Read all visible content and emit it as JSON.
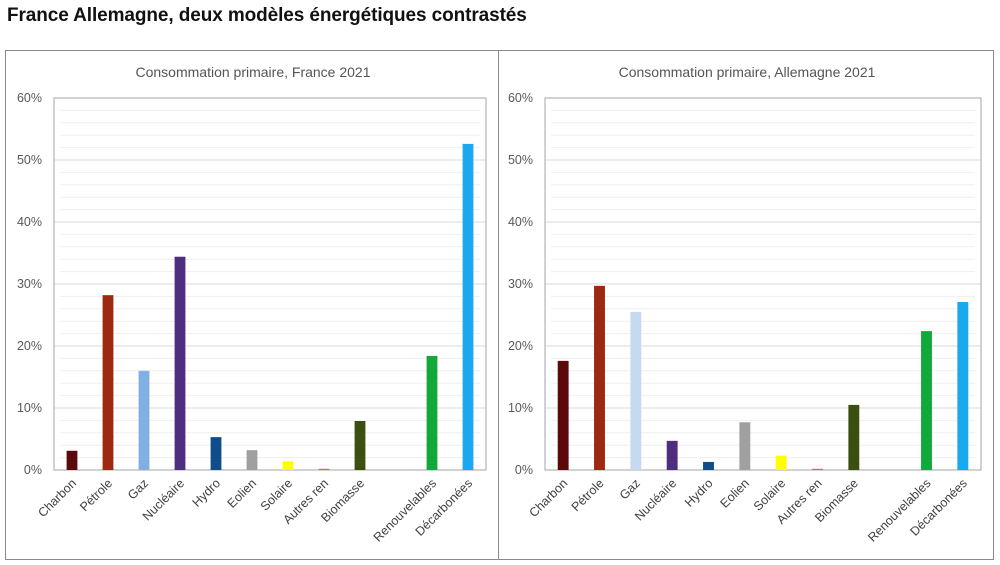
{
  "page": {
    "title": "France Allemagne, deux modèles énergétiques contrastés"
  },
  "chart_data": [
    {
      "type": "bar",
      "title": "Consommation primaire, France 2021",
      "xlabel": "",
      "ylabel": "",
      "ylim": [
        0,
        0.6
      ],
      "ytick_labels": [
        "0%",
        "10%",
        "20%",
        "30%",
        "40%",
        "50%",
        "60%"
      ],
      "yticks": [
        0,
        0.1,
        0.2,
        0.3,
        0.4,
        0.5,
        0.6
      ],
      "minor_grid_step": 0.02,
      "grid": true,
      "legend": "none",
      "categories": [
        "Charbon",
        "Pétrole",
        "Gaz",
        "Nucléaire",
        "Hydro",
        "Eolien",
        "Solaire",
        "Autres ren",
        "Biomasse",
        "",
        "Renouvelables",
        "Décarbonées"
      ],
      "values": [
        0.031,
        0.282,
        0.16,
        0.344,
        0.053,
        0.032,
        0.014,
        0.002,
        0.079,
        null,
        0.184,
        0.526
      ],
      "colors": [
        "#5a0a0a",
        "#9c2a10",
        "#7fb0e3",
        "#4f2d7f",
        "#0f4c8a",
        "#a0a0a0",
        "#ffff00",
        "#c87070",
        "#3a4f10",
        null,
        "#12a83a",
        "#1aa9ee"
      ]
    },
    {
      "type": "bar",
      "title": "Consommation primaire, Allemagne 2021",
      "xlabel": "",
      "ylabel": "",
      "ylim": [
        0,
        0.6
      ],
      "ytick_labels": [
        "0%",
        "10%",
        "20%",
        "30%",
        "40%",
        "50%",
        "60%"
      ],
      "yticks": [
        0,
        0.1,
        0.2,
        0.3,
        0.4,
        0.5,
        0.6
      ],
      "minor_grid_step": 0.02,
      "grid": true,
      "legend": "none",
      "categories": [
        "Charbon",
        "Pétrole",
        "Gaz",
        "Nucléaire",
        "Hydro",
        "Eolien",
        "Solaire",
        "Autres ren",
        "Biomasse",
        "",
        "Renouvelables",
        "Décarbonées"
      ],
      "values": [
        0.176,
        0.297,
        0.255,
        0.047,
        0.013,
        0.077,
        0.023,
        0.002,
        0.105,
        null,
        0.224,
        0.271
      ],
      "colors": [
        "#5a0a0a",
        "#9c2a10",
        "#c5d9f1",
        "#4f2d7f",
        "#0f4c8a",
        "#a0a0a0",
        "#ffff00",
        "#c87070",
        "#3a4f10",
        null,
        "#12a83a",
        "#1aa9ee"
      ]
    }
  ]
}
